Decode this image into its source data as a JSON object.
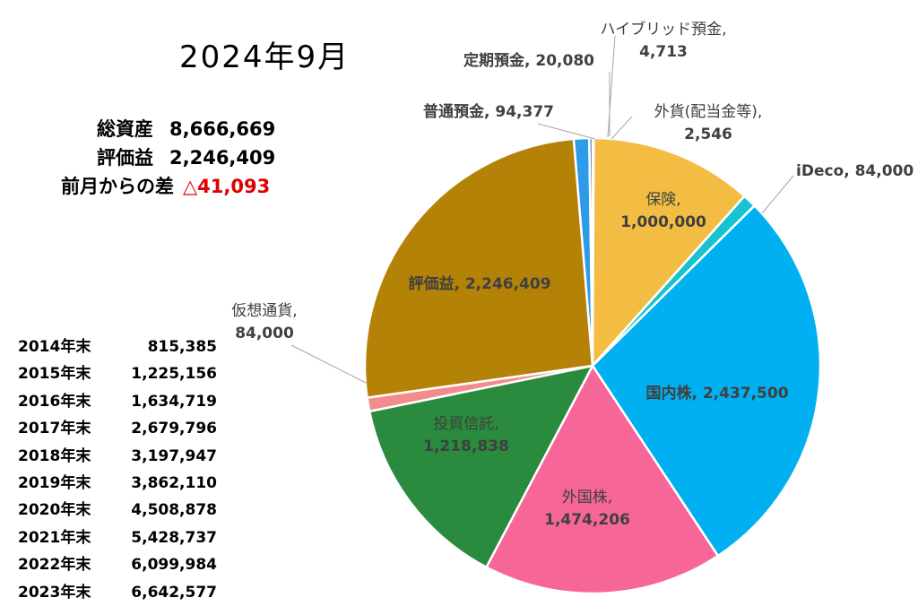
{
  "title": "2024年9月",
  "summary": {
    "total_label": "総資産",
    "total_value": "8,666,669",
    "gain_label": "評価益",
    "gain_value": "2,246,409",
    "diff_label": "前月からの差",
    "diff_value": "△41,093",
    "diff_color": "#e00000"
  },
  "history": [
    {
      "year": "2014年末",
      "value": "815,385"
    },
    {
      "year": "2015年末",
      "value": "1,225,156"
    },
    {
      "year": "2016年末",
      "value": "1,634,719"
    },
    {
      "year": "2017年末",
      "value": "2,679,796"
    },
    {
      "year": "2018年末",
      "value": "3,197,947"
    },
    {
      "year": "2019年末",
      "value": "3,862,110"
    },
    {
      "year": "2020年末",
      "value": "4,508,878"
    },
    {
      "year": "2021年末",
      "value": "5,428,737"
    },
    {
      "year": "2022年末",
      "value": "6,099,984"
    },
    {
      "year": "2023年末",
      "value": "6,642,577"
    }
  ],
  "chart_data": {
    "type": "pie",
    "start": "12 o'clock, clockwise",
    "slices": [
      {
        "name": "ハイブリッド預金",
        "value": 4713,
        "label": [
          "ハイブリッド預金,",
          "4,713"
        ],
        "color": "#2e75b6"
      },
      {
        "name": "外貨(配当金等)",
        "value": 2546,
        "label": [
          "外貨(配当金等),",
          "2,546"
        ],
        "color": "#f4b183"
      },
      {
        "name": "保険",
        "value": 1000000,
        "label": [
          "保険,",
          "1,000,000"
        ],
        "color": "#f2bd42"
      },
      {
        "name": "iDeco",
        "value": 84000,
        "label": [
          "iDeco, 84,000"
        ],
        "color": "#17c3d0"
      },
      {
        "name": "国内株",
        "value": 2437500,
        "label": [
          "国内株, 2,437,500"
        ],
        "color": "#00b0f0"
      },
      {
        "name": "外国株",
        "value": 1474206,
        "label": [
          "外国株,",
          "1,474,206"
        ],
        "color": "#f66699"
      },
      {
        "name": "投資信託",
        "value": 1218838,
        "label": [
          "投資信託,",
          "1,218,838"
        ],
        "color": "#2a8a3e"
      },
      {
        "name": "仮想通貨",
        "value": 84000,
        "label": [
          "仮想通貨,",
          "84,000"
        ],
        "color": "#f28b8b"
      },
      {
        "name": "評価益",
        "value": 2246409,
        "label": [
          "評価益, 2,246,409"
        ],
        "color": "#b58208"
      },
      {
        "name": "普通預金",
        "value": 94377,
        "label": [
          "普通預金, 94,377"
        ],
        "color": "#2e9be8"
      },
      {
        "name": "定期預金",
        "value": 20080,
        "label": [
          "定期預金, 20,080"
        ],
        "color": "#4472c4"
      }
    ]
  }
}
